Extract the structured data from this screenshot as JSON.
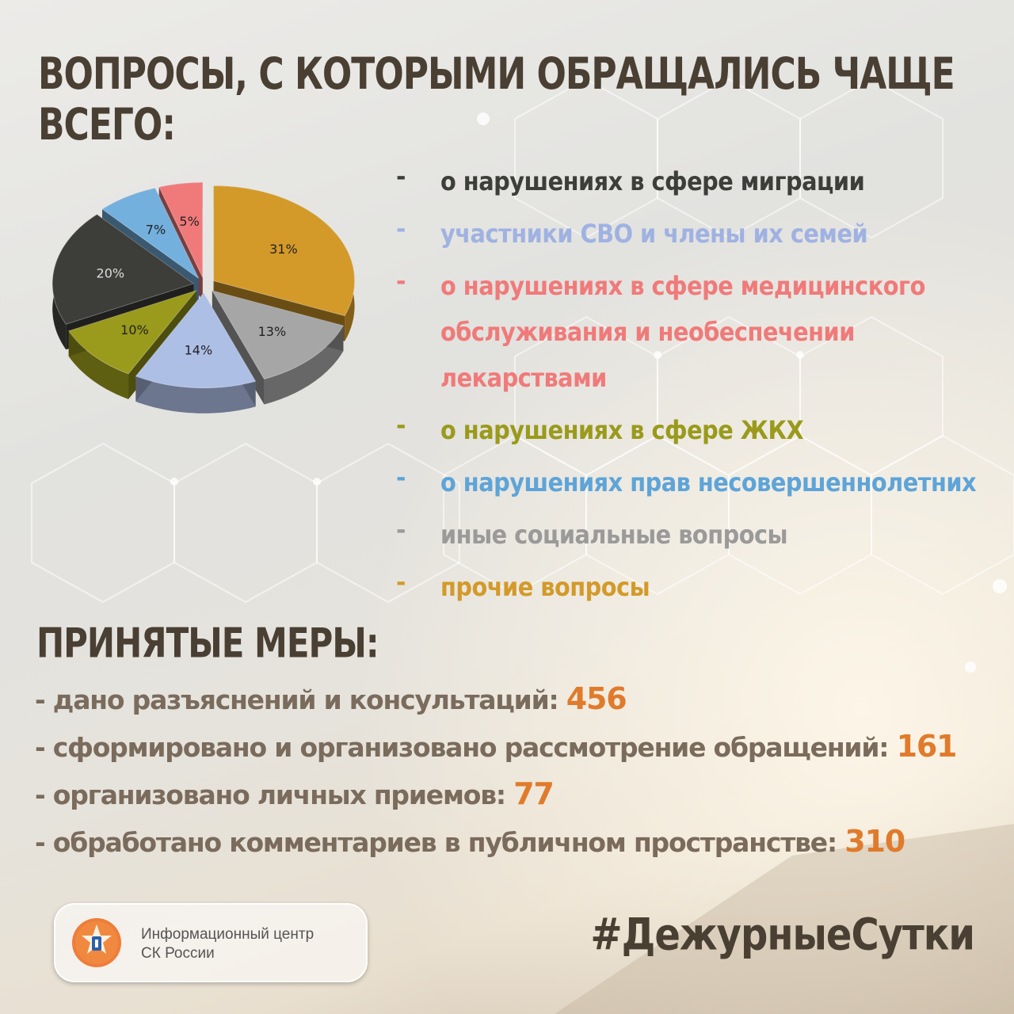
{
  "title": "ВОПРОСЫ, С КОТОРЫМИ ОБРАЩАЛИСЬ ЧАЩЕ ВСЕГО:",
  "chart_data": {
    "type": "pie",
    "values": [
      31,
      13,
      14,
      10,
      20,
      7,
      5
    ],
    "labels": [
      "31%",
      "13%",
      "14%",
      "10%",
      "20%",
      "7%",
      "5%"
    ],
    "colors": [
      "#d39a2a",
      "#a6a6a6",
      "#aebfe6",
      "#9a9a1c",
      "#3d3d3a",
      "#74b0de",
      "#f07a7a"
    ],
    "legend_placement": "right"
  },
  "legend": [
    {
      "dash": "-",
      "text": "о нарушениях в сфере миграции",
      "color": "#3d3d3a"
    },
    {
      "dash": "-",
      "text": "участники СВО и члены их семей",
      "color": "#9fb2e2"
    },
    {
      "dash": "-",
      "text": "о нарушениях в сфере медицинского обслуживания и необеспечении лекарствами",
      "color": "#f07a7a"
    },
    {
      "dash": "-",
      "text": "о нарушениях в сфере ЖКХ",
      "color": "#9a9a1c"
    },
    {
      "dash": "-",
      "text": "о нарушениях прав несовершеннолетних",
      "color": "#5ea4d8"
    },
    {
      "dash": "-",
      "text": "иные социальные вопросы",
      "color": "#9a9a9a"
    },
    {
      "dash": "-",
      "text": "прочие вопросы",
      "color": "#d39a2a"
    }
  ],
  "measures": {
    "title": "ПРИНЯТЫЕ МЕРЫ:",
    "items": [
      {
        "label": "- дано разъяснений и консультаций:",
        "value": "456"
      },
      {
        "label": "- сформировано и организовано рассмотрение обращений:",
        "value": "161"
      },
      {
        "label": "- организовано личных приемов:",
        "value": "77"
      },
      {
        "label": "- обработано комментариев в публичном пространстве:",
        "value": "310"
      }
    ]
  },
  "badge": {
    "line1": "Информационный центр",
    "line2": "СК России"
  },
  "hashtag": "#ДежурныеСутки"
}
